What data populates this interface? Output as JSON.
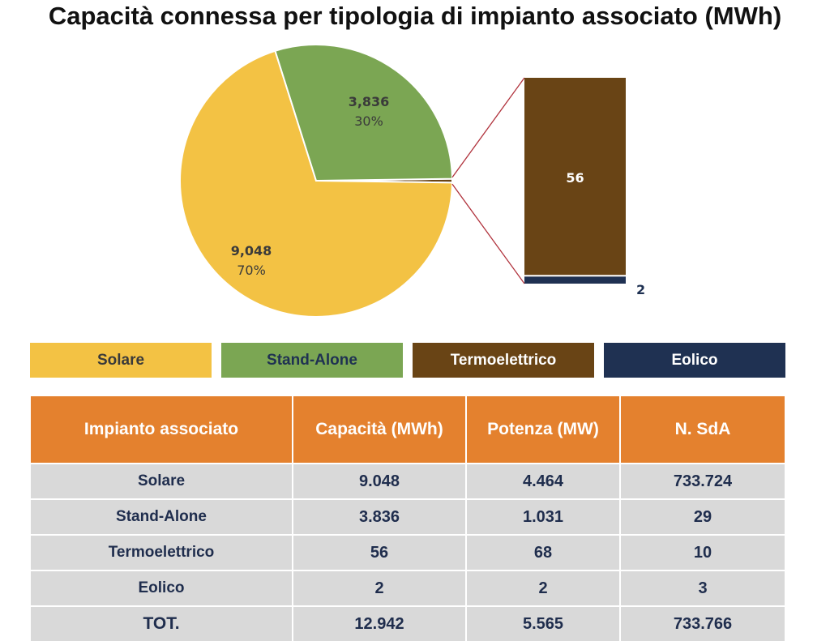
{
  "title": "Capacità connessa per tipologia di impianto associato (MWh)",
  "colors": {
    "solare": "#f3c244",
    "stand_alone": "#7ba653",
    "termoelettrico": "#694415",
    "eolico": "#1f3152",
    "header_bg": "#e4812e",
    "row_bg": "#d9d9d9",
    "connector": "#b0313b"
  },
  "chart_data": {
    "type": "pie",
    "title": "Capacità connessa per tipologia di impianto associato (MWh)",
    "slices": [
      {
        "name": "Solare",
        "value": 9048,
        "value_label": "9,048",
        "percent_label": "70%",
        "color": "#f3c244"
      },
      {
        "name": "Stand-Alone",
        "value": 3836,
        "value_label": "3,836",
        "percent_label": "30%",
        "color": "#7ba653"
      },
      {
        "name": "Termoelettrico",
        "value": 56,
        "value_label": "56",
        "color": "#694415"
      },
      {
        "name": "Eolico",
        "value": 2,
        "value_label": "2",
        "color": "#1f3152"
      }
    ],
    "bar_of_pie": {
      "type": "stacked-bar",
      "segments": [
        {
          "name": "Termoelettrico",
          "value": 56,
          "value_label": "56",
          "color": "#694415"
        },
        {
          "name": "Eolico",
          "value": 2,
          "value_label": "2",
          "color": "#1f3152"
        }
      ]
    },
    "legend": {
      "placement": "bottom",
      "entries": [
        {
          "label": "Solare",
          "color": "#f3c244",
          "text_color": "#3a3a3a"
        },
        {
          "label": "Stand-Alone",
          "color": "#7ba653",
          "text_color": "#1f3152"
        },
        {
          "label": "Termoelettrico",
          "color": "#694415",
          "text_color": "#ffffff"
        },
        {
          "label": "Eolico",
          "color": "#1f3152",
          "text_color": "#ffffff"
        }
      ]
    }
  },
  "table": {
    "headers": [
      "Impianto associato",
      "Capacità (MWh)",
      "Potenza (MW)",
      "N. SdA"
    ],
    "rows": [
      [
        "Solare",
        "9.048",
        "4.464",
        "733.724"
      ],
      [
        "Stand-Alone",
        "3.836",
        "1.031",
        "29"
      ],
      [
        "Termoelettrico",
        "56",
        "68",
        "10"
      ],
      [
        "Eolico",
        "2",
        "2",
        "3"
      ]
    ],
    "total": [
      "TOT.",
      "12.942",
      "5.565",
      "733.766"
    ]
  }
}
